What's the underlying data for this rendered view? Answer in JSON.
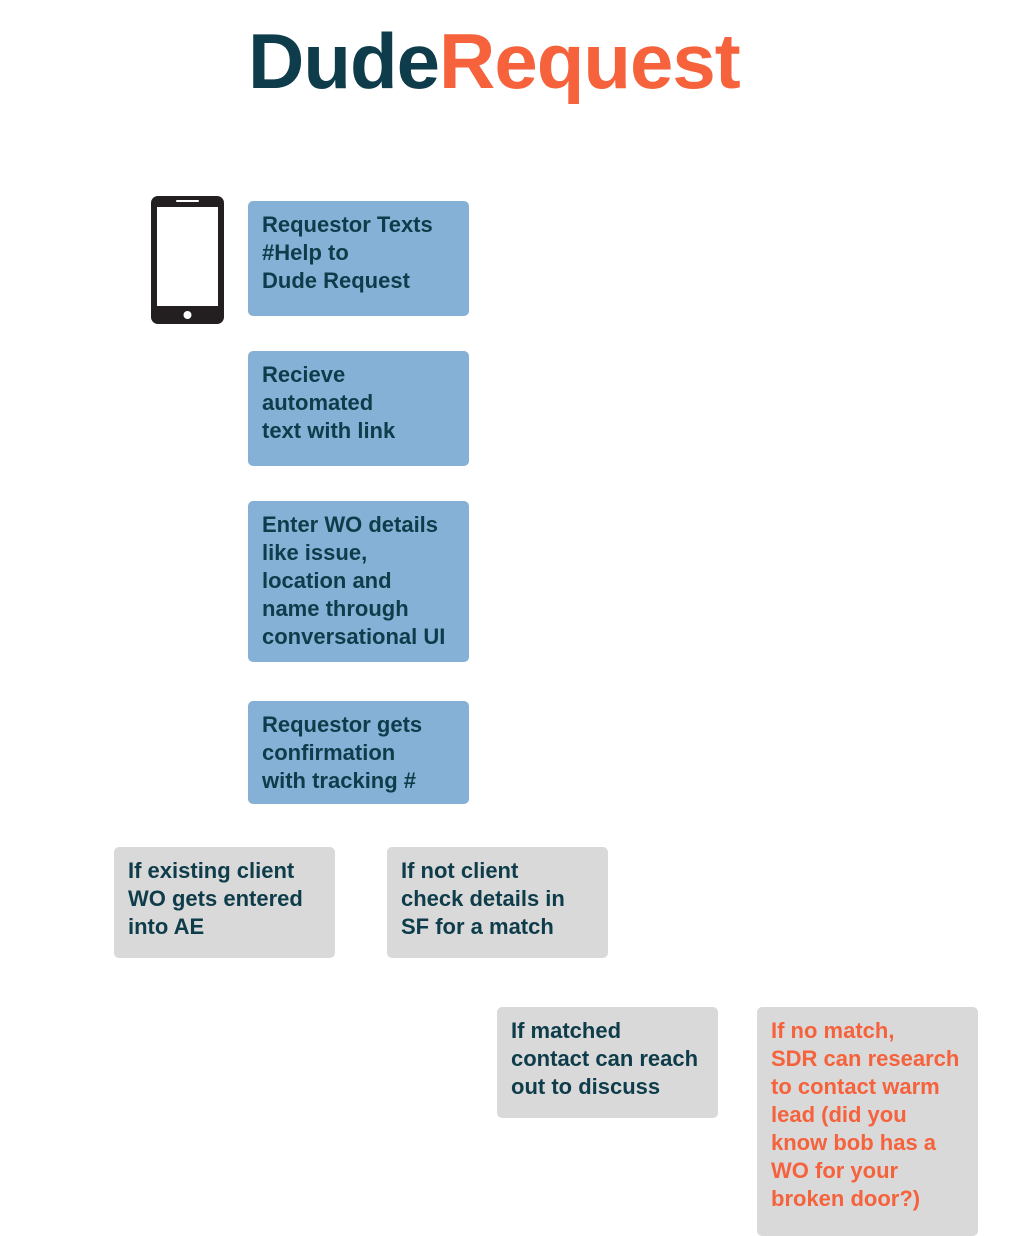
{
  "logo": {
    "part1": "Dude",
    "part2": "Request"
  },
  "icons": {
    "phone": "smartphone-icon"
  },
  "colors": {
    "dark_teal": "#0e3c4a",
    "orange": "#f5623c",
    "blue_box": "#86b1d6",
    "gray_box": "#d9d9d9"
  },
  "steps": [
    "Requestor Texts\n#Help to\nDude Request",
    "Recieve\nautomated\ntext with link",
    "Enter WO details\nlike issue,\nlocation and\nname through\nconversational UI",
    "Requestor gets\nconfirmation\nwith tracking #"
  ],
  "branches": {
    "existing_client": "If existing client\nWO gets entered\ninto AE",
    "not_client": "If not client\ncheck details in\nSF for a match",
    "matched": "If matched\ncontact can reach\nout to discuss",
    "no_match": "If no match,\nSDR can research\nto contact warm\nlead (did you\nknow bob has a\nWO for your\nbroken door?)"
  }
}
